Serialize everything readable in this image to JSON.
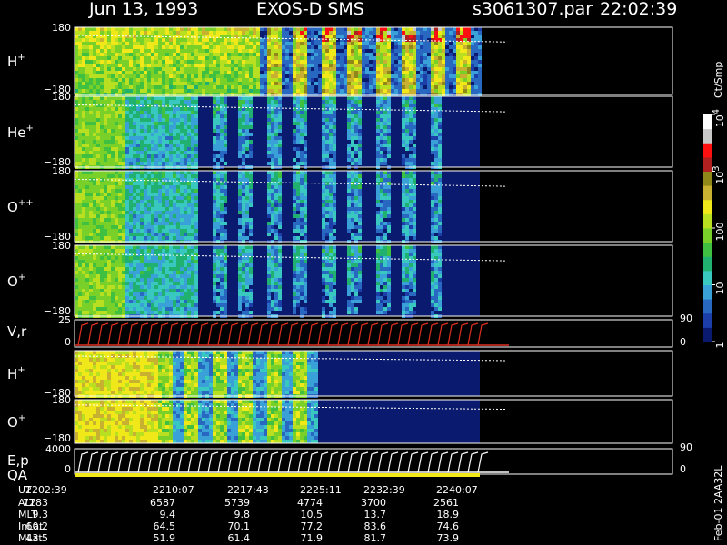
{
  "header": {
    "date": "Jun 13, 1993",
    "instrument": "EXOS-D SMS",
    "file": "s3061307.par",
    "time": "22:02:39"
  },
  "side_label": "Feb-01 2AA32L",
  "colorbar": {
    "unit": "Ct/Smp",
    "ticks": [
      {
        "label": "1",
        "value": 1
      },
      {
        "label": "10",
        "value": 10
      },
      {
        "label": "100",
        "value": 100
      },
      {
        "label": "10",
        "sup": "3",
        "value": 1000
      },
      {
        "label": "10",
        "sup": "4",
        "value": 10000
      }
    ],
    "colors": [
      "#0a1a6e",
      "#1c3ea8",
      "#2868c0",
      "#3aa0d8",
      "#38c8c0",
      "#20b070",
      "#40c040",
      "#78d028",
      "#b8e020",
      "#f0e818",
      "#c8b030",
      "#908818",
      "#b02020",
      "#ff1010",
      "#c8c8c8",
      "#ffffff"
    ]
  },
  "chart_data": [
    {
      "type": "heatmap",
      "panel": "H+",
      "species": "H",
      "charge": "+",
      "yticks": [
        "180",
        "−180"
      ],
      "ylim": [
        -180,
        180
      ],
      "data_end_time": "2241:53"
    },
    {
      "type": "heatmap",
      "panel": "He+",
      "species": "He",
      "charge": "+",
      "yticks": [
        "180",
        "−180"
      ],
      "ylim": [
        -180,
        180
      ]
    },
    {
      "type": "heatmap",
      "panel": "O++",
      "species": "O",
      "charge": "++",
      "yticks": [
        "180",
        "−180"
      ],
      "ylim": [
        -180,
        180
      ]
    },
    {
      "type": "heatmap",
      "panel": "O+",
      "species": "O",
      "charge": "+",
      "yticks": [
        "180",
        "−180"
      ],
      "ylim": [
        -180,
        180
      ]
    },
    {
      "type": "line",
      "panel": "V,r",
      "label": "V,r",
      "yticks": [
        "25",
        "0"
      ],
      "right_ticks": [
        "90",
        "0"
      ],
      "ylim": [
        0,
        25
      ]
    },
    {
      "type": "heatmap",
      "panel": "H+ (energy)",
      "species": "H",
      "charge": "+",
      "yticks": [
        "−180"
      ],
      "ylim": [
        -180,
        180
      ]
    },
    {
      "type": "heatmap",
      "panel": "O+ (energy)",
      "species": "O",
      "charge": "+",
      "yticks": [
        "180",
        "−180"
      ],
      "ylim": [
        -180,
        180
      ]
    },
    {
      "type": "line",
      "panel": "E,p QA",
      "label": "E,p",
      "label2": "QA",
      "yticks": [
        "4000",
        "0"
      ],
      "right_ticks": [
        "90",
        "0"
      ],
      "ylim": [
        0,
        4000
      ]
    }
  ],
  "ephemeris": {
    "labels": [
      "UT",
      "ALT",
      "MLT",
      "InLat",
      "MLat"
    ],
    "columns": [
      {
        "UT": "2202:39",
        "ALT": "7283",
        "MLT": "9.3",
        "InLat": "60.2",
        "MLat": "43.5"
      },
      {
        "UT": "2210:07",
        "ALT": "6587",
        "MLT": "9.4",
        "InLat": "64.5",
        "MLat": "51.9"
      },
      {
        "UT": "2217:43",
        "ALT": "5739",
        "MLT": "9.8",
        "InLat": "70.1",
        "MLat": "61.4"
      },
      {
        "UT": "2225:11",
        "ALT": "4774",
        "MLT": "10.5",
        "InLat": "77.2",
        "MLat": "71.9"
      },
      {
        "UT": "2232:39",
        "ALT": "3700",
        "MLT": "13.7",
        "InLat": "83.6",
        "MLat": "81.7"
      },
      {
        "UT": "2240:07",
        "ALT": "2561",
        "MLT": "18.9",
        "InLat": "74.6",
        "MLat": "73.9"
      }
    ]
  }
}
